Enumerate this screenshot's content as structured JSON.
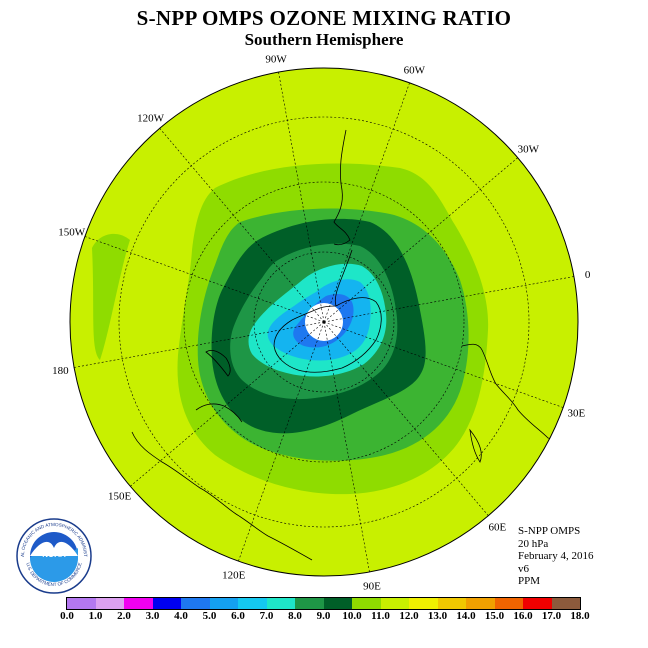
{
  "header": {
    "title": "S-NPP OMPS OZONE MIXING RATIO",
    "subtitle": "Southern Hemisphere"
  },
  "map": {
    "projection": "polar-stereographic-south",
    "ocean_color": "#c8f000",
    "contour_colors": {
      "level_11_12": "#c8f000",
      "level_10_11": "#8fdc00",
      "level_9_10": "#3cb432",
      "level_8_9": "#1e9646",
      "level_7_8": "#005f28",
      "level_6_7": "#1ee6c8",
      "level_5_6": "#14b4f0",
      "level_4_5": "#1e78f0",
      "no_data": "#ffffff"
    },
    "longitude_labels": [
      {
        "text": "0",
        "lon": 0
      },
      {
        "text": "30E",
        "lon": 30
      },
      {
        "text": "60E",
        "lon": 60
      },
      {
        "text": "90E",
        "lon": 90
      },
      {
        "text": "120E",
        "lon": 120
      },
      {
        "text": "150E",
        "lon": 150
      },
      {
        "text": "180",
        "lon": 180
      },
      {
        "text": "150W",
        "lon": -150
      },
      {
        "text": "120W",
        "lon": -120
      },
      {
        "text": "90W",
        "lon": -90
      },
      {
        "text": "60W",
        "lon": -60
      },
      {
        "text": "30W",
        "lon": -30
      }
    ]
  },
  "info": {
    "product": "S-NPP OMPS",
    "level": "20 hPa",
    "date": "February 4, 2016",
    "version": "v6",
    "units": "PPM"
  },
  "logo": {
    "text": "NOAA",
    "ring_text": "NATIONAL OCEANIC AND ATMOSPHERIC ADMINISTRATION",
    "ring_text_bottom": "U.S. DEPARTMENT OF COMMERCE"
  },
  "colorbar": {
    "colors": [
      "#b478f0",
      "#dca0f0",
      "#f000f0",
      "#0000f0",
      "#1e78f0",
      "#14a0f0",
      "#14c8f0",
      "#1ee6c8",
      "#1e9646",
      "#005f28",
      "#8fdc00",
      "#c8f000",
      "#f0f000",
      "#f0c800",
      "#f0a000",
      "#f06400",
      "#f00000",
      "#8c5a3c"
    ],
    "tick_labels": [
      "0.0",
      "1.0",
      "2.0",
      "3.0",
      "4.0",
      "5.0",
      "6.0",
      "7.0",
      "8.0",
      "9.0",
      "10.0",
      "11.0",
      "12.0",
      "13.0",
      "14.0",
      "15.0",
      "16.0",
      "17.0",
      "18.0"
    ]
  }
}
